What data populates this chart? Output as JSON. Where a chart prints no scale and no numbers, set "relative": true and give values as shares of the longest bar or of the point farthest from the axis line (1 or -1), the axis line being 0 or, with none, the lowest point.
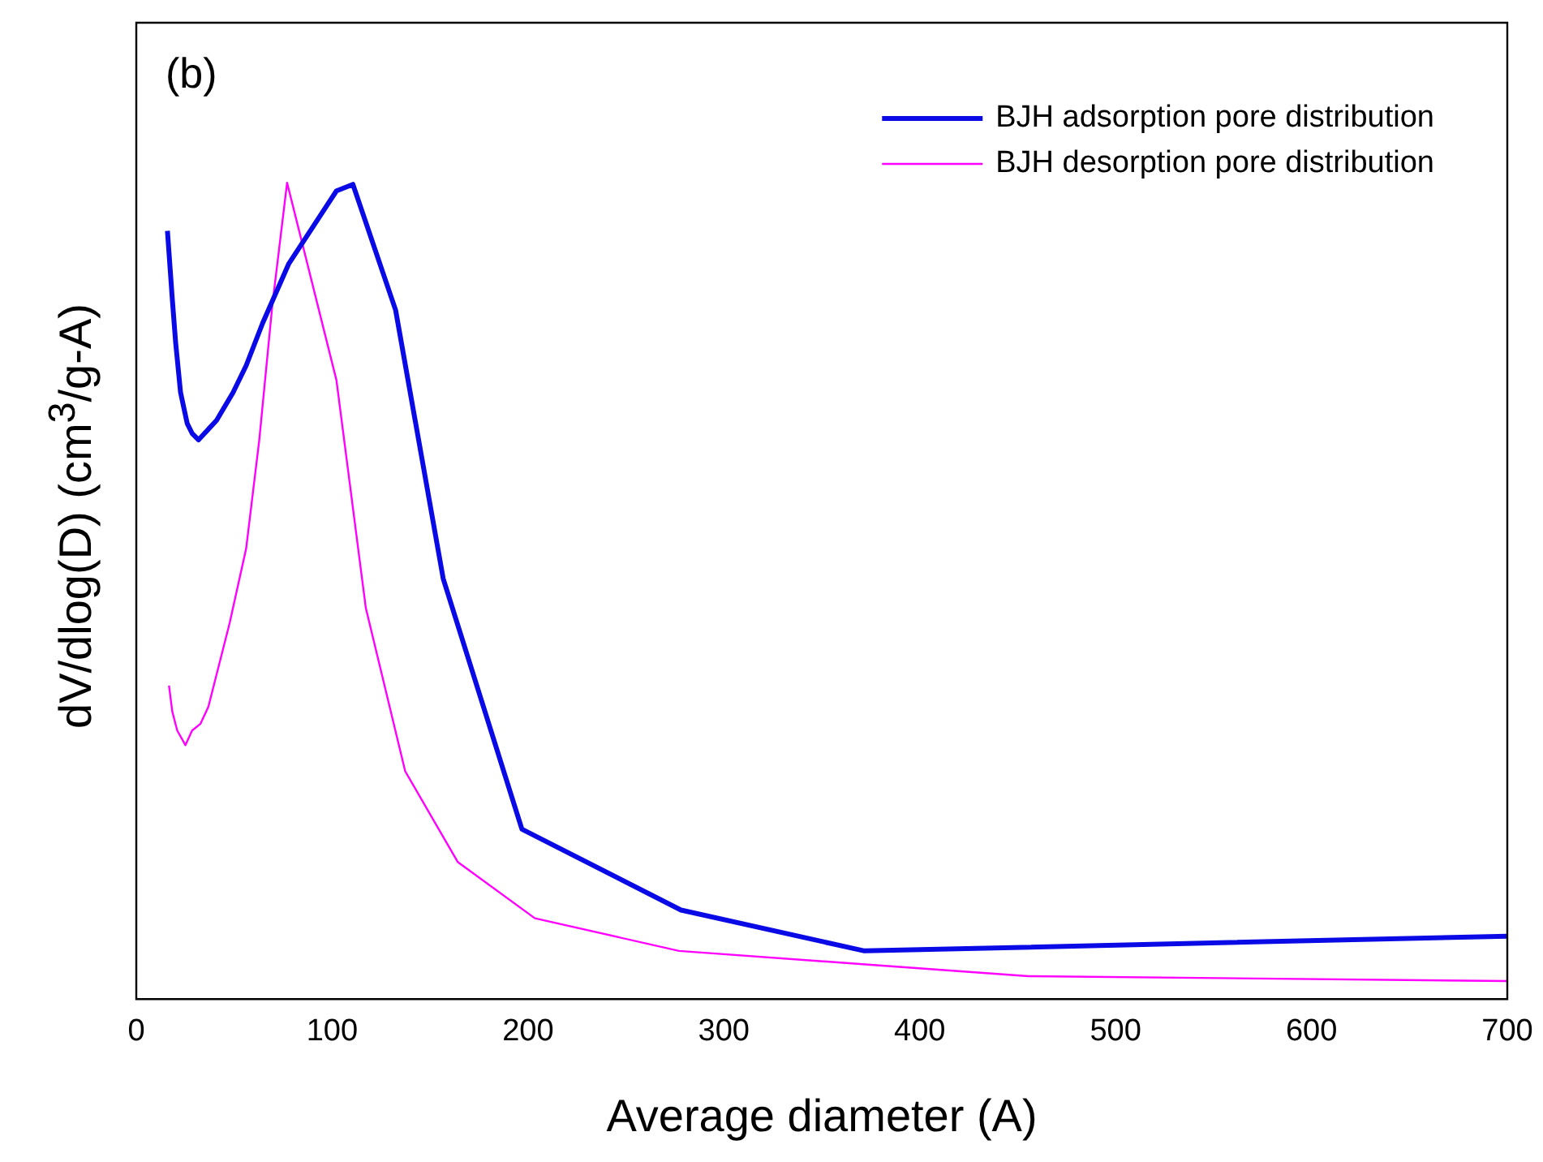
{
  "chart_data": {
    "type": "line",
    "xlabel": "Average diameter (A)",
    "ylabel": "dV/dlog(D) (cm$^{3}$/g-A)",
    "annotations": [
      "(b)"
    ],
    "relative": true,
    "xlim": [
      0,
      700
    ],
    "xticks": [
      0,
      100,
      200,
      300,
      400,
      500,
      600,
      700
    ],
    "legend": "top right",
    "grid": false,
    "marker": "none",
    "line_style": "solid",
    "series": [
      {
        "name": "BJH adsorption pore distribution",
        "color": "#0a0ae6",
        "x": [
          15.9,
          18.4,
          20.1,
          22.6,
          26.0,
          28.5,
          31.8,
          41.0,
          49.4,
          56.1,
          64.5,
          77.9,
          102.2,
          110.6,
          132.4,
          156.7,
          196.9,
          278.1,
          371.8,
          700
        ],
        "values": [
          0.941,
          0.857,
          0.804,
          0.743,
          0.705,
          0.693,
          0.685,
          0.709,
          0.743,
          0.776,
          0.828,
          0.901,
          0.99,
          0.998,
          0.844,
          0.515,
          0.208,
          0.109,
          0.059,
          0.077
        ]
      },
      {
        "name": "BJH desorption pore distribution",
        "color": "#ff00ff",
        "x": [
          16.7,
          18.4,
          20.9,
          25.1,
          28.5,
          32.7,
          36.8,
          47.7,
          56.1,
          62.8,
          69.5,
          77.0,
          102.2,
          117.2,
          137.3,
          164.1,
          203.5,
          277.1,
          375.1,
          455.5,
          700
        ],
        "values": [
          0.384,
          0.352,
          0.329,
          0.311,
          0.329,
          0.337,
          0.358,
          0.461,
          0.552,
          0.685,
          0.851,
          1.0,
          0.758,
          0.479,
          0.279,
          0.168,
          0.099,
          0.059,
          0.042,
          0.028,
          0.022
        ]
      }
    ]
  }
}
